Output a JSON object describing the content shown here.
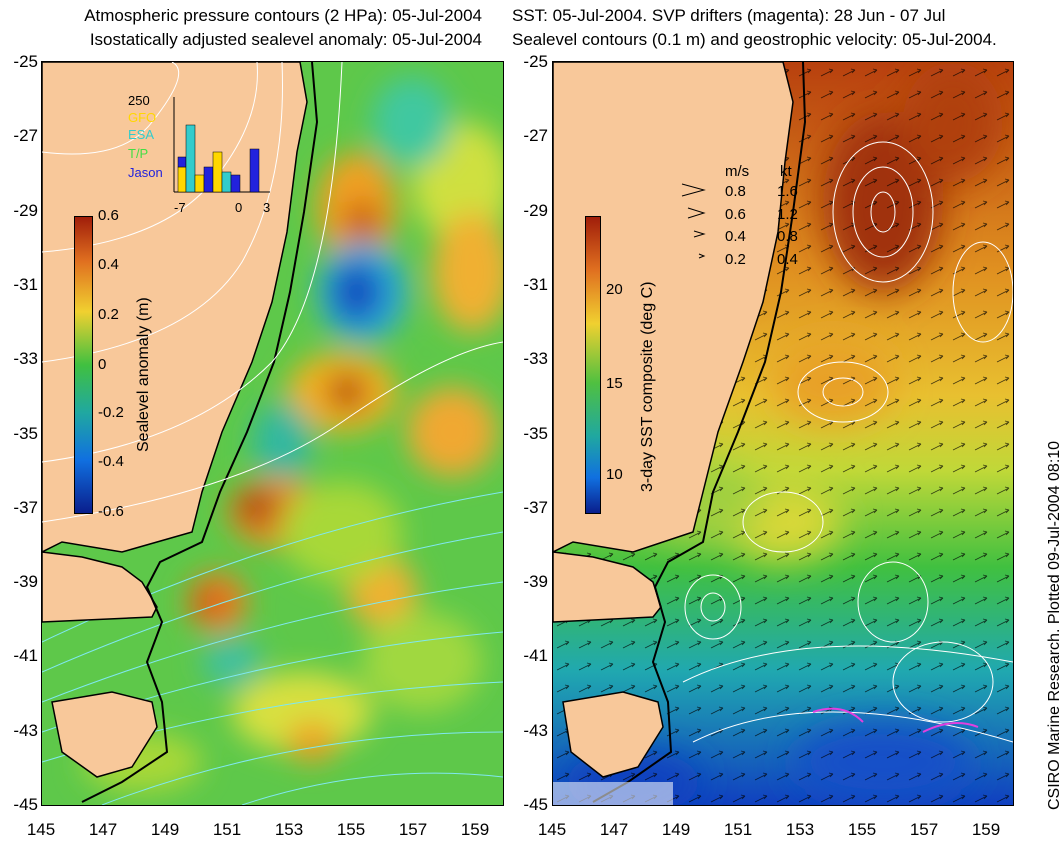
{
  "left": {
    "title_line1": "Atmospheric pressure contours (2 HPa): 05-Jul-2004",
    "title_line2": "Isostatically adjusted sealevel anomaly: 05-Jul-2004",
    "colorbar": {
      "label": "Sealevel anomaly (m)",
      "ticks": [
        "0.6",
        "0.4",
        "0.2",
        "0",
        "-0.2",
        "-0.4",
        "-0.6"
      ]
    },
    "histogram": {
      "top_label": "250",
      "satellites": [
        {
          "name": "GFO",
          "color": "#ffd700"
        },
        {
          "name": "ESA",
          "color": "#33cccc"
        },
        {
          "name": "T/P",
          "color": "#44dd44"
        },
        {
          "name": "Jason",
          "color": "#2222dd"
        }
      ],
      "x_ticks": [
        "-7",
        "0",
        "3"
      ]
    }
  },
  "right": {
    "title_line1": "SST: 05-Jul-2004. SVP drifters (magenta): 28 Jun - 07 Jul",
    "title_line2": "Sealevel contours (0.1 m) and geostrophic velocity: 05-Jul-2004.",
    "colorbar": {
      "label": "3-day SST composite (deg C)",
      "ticks": [
        "20",
        "15",
        "10"
      ]
    },
    "velocity_legend": {
      "header_ms": "m/s",
      "header_kt": "kt",
      "rows": [
        {
          "ms": "0.8",
          "kt": "1.6"
        },
        {
          "ms": "0.6",
          "kt": "1.2"
        },
        {
          "ms": "0.4",
          "kt": "0.8"
        },
        {
          "ms": "0.2",
          "kt": "0.4"
        }
      ]
    }
  },
  "axes": {
    "y_ticks": [
      "-25",
      "-27",
      "-29",
      "-31",
      "-33",
      "-35",
      "-37",
      "-39",
      "-41",
      "-43",
      "-45"
    ],
    "x_ticks": [
      "145",
      "147",
      "149",
      "151",
      "153",
      "155",
      "157",
      "159"
    ]
  },
  "credit": "CSIRO Marine Research. Plotted 09-Jul-2004 08:10",
  "colors": {
    "land": "#f8c89a",
    "sla_high": "#a83a10",
    "sla_low": "#0a1e8c",
    "sst_warm": "#b8400e",
    "sst_cool": "#1040c0"
  }
}
